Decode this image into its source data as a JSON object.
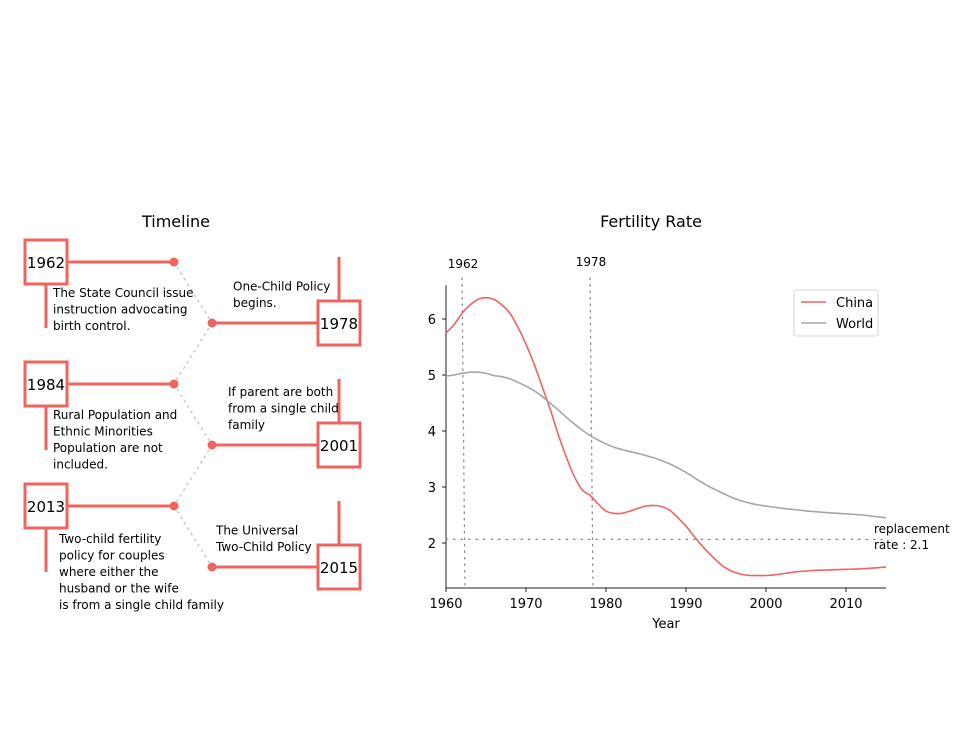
{
  "timeline": {
    "title": "Timeline",
    "accent": "#ef6461",
    "connector_color": "#c8c8c8",
    "left_events": [
      {
        "year": "1962",
        "lines": [
          "The State Council issue",
          "instruction advocating",
          "birth control."
        ]
      },
      {
        "year": "1984",
        "lines": [
          "Rural Population and",
          "Ethnic Minorities",
          "Population are not",
          "included."
        ]
      },
      {
        "year": "2013",
        "lines": [
          "Two-child fertility",
          "policy for couples",
          "where either the",
          "husband or the wife",
          "is from a single child family"
        ]
      }
    ],
    "right_events": [
      {
        "year": "1978",
        "lines": [
          "One-Child Policy",
          "begins."
        ]
      },
      {
        "year": "2001",
        "lines": [
          "If parent are both",
          "from a single child",
          "family"
        ]
      },
      {
        "year": "2015",
        "lines": [
          "The Universal",
          "Two-Child Policy"
        ]
      }
    ]
  },
  "chart_data": {
    "type": "line",
    "title": "Fertility Rate",
    "xlabel": "Year",
    "ylabel": "",
    "xlim": [
      1960,
      2015
    ],
    "ylim": [
      1.2,
      6.6
    ],
    "xticks": [
      1960,
      1970,
      1980,
      1990,
      2000,
      2010
    ],
    "yticks": [
      2,
      3,
      4,
      5,
      6
    ],
    "grid": false,
    "legend_position": "top-right",
    "series": [
      {
        "name": "China",
        "color": "#ef6461",
        "x": [
          1960,
          1961,
          1962,
          1963,
          1964,
          1965,
          1966,
          1967,
          1968,
          1969,
          1970,
          1971,
          1972,
          1973,
          1974,
          1975,
          1976,
          1977,
          1978,
          1979,
          1980,
          1981,
          1982,
          1983,
          1984,
          1985,
          1986,
          1987,
          1988,
          1989,
          1990,
          1991,
          1992,
          1993,
          1994,
          1995,
          1996,
          1997,
          1998,
          1999,
          2000,
          2001,
          2002,
          2003,
          2004,
          2005,
          2006,
          2008,
          2010,
          2012,
          2015
        ],
        "y": [
          5.75,
          5.9,
          6.1,
          6.25,
          6.35,
          6.38,
          6.35,
          6.25,
          6.1,
          5.85,
          5.55,
          5.2,
          4.8,
          4.4,
          3.95,
          3.55,
          3.2,
          2.95,
          2.85,
          2.7,
          2.57,
          2.53,
          2.53,
          2.57,
          2.62,
          2.66,
          2.67,
          2.65,
          2.58,
          2.45,
          2.3,
          2.12,
          1.95,
          1.8,
          1.66,
          1.55,
          1.48,
          1.44,
          1.42,
          1.42,
          1.42,
          1.43,
          1.45,
          1.47,
          1.49,
          1.5,
          1.51,
          1.52,
          1.53,
          1.54,
          1.57
        ]
      },
      {
        "name": "World",
        "color": "#a6a6a6",
        "x": [
          1960,
          1961,
          1962,
          1963,
          1964,
          1965,
          1966,
          1967,
          1968,
          1969,
          1970,
          1971,
          1972,
          1973,
          1974,
          1975,
          1976,
          1977,
          1978,
          1979,
          1980,
          1981,
          1982,
          1983,
          1984,
          1985,
          1986,
          1987,
          1988,
          1989,
          1990,
          1991,
          1992,
          1993,
          1994,
          1995,
          1996,
          1997,
          1998,
          1999,
          2000,
          2002,
          2004,
          2006,
          2008,
          2010,
          2012,
          2015
        ],
        "y": [
          4.98,
          5.0,
          5.03,
          5.05,
          5.05,
          5.03,
          4.99,
          4.97,
          4.93,
          4.87,
          4.8,
          4.72,
          4.62,
          4.5,
          4.38,
          4.25,
          4.13,
          4.02,
          3.92,
          3.84,
          3.77,
          3.71,
          3.67,
          3.63,
          3.6,
          3.56,
          3.52,
          3.47,
          3.41,
          3.34,
          3.26,
          3.17,
          3.08,
          3.0,
          2.93,
          2.86,
          2.8,
          2.75,
          2.71,
          2.68,
          2.66,
          2.62,
          2.59,
          2.56,
          2.54,
          2.52,
          2.5,
          2.45
        ]
      }
    ],
    "vlines": [
      {
        "x": 1962,
        "label": "1962"
      },
      {
        "x": 1978,
        "label": "1978"
      }
    ],
    "hline": {
      "y": 2.1,
      "label_lines": [
        "replacement",
        "rate : 2.1"
      ]
    }
  }
}
